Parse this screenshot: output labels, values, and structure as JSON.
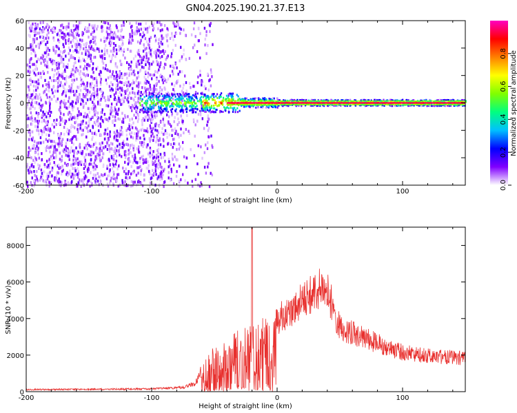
{
  "title": "GN04.2025.190.21.37.E13",
  "chart_data": [
    {
      "type": "heatmap",
      "xlabel": "Height of straight line (km)",
      "ylabel": "Frequency (Hz)",
      "xlim": [
        -200,
        150
      ],
      "ylim": [
        -60,
        60
      ],
      "xticks": [
        -200,
        -100,
        0,
        100
      ],
      "yticks": [
        -60,
        -40,
        -20,
        0,
        20,
        40,
        60
      ],
      "colorbar": {
        "label": "Normalized spectral amplitude",
        "range": [
          0,
          1
        ],
        "ticks": [
          0.0,
          0.2,
          0.4,
          0.6,
          0.8
        ],
        "colormap": [
          "#ffffff",
          "#8000ff",
          "#0000ff",
          "#00c0ff",
          "#00ff80",
          "#80ff00",
          "#ffff00",
          "#ff8000",
          "#ff0000",
          "#ff00c0"
        ]
      },
      "noise_region_km": [
        -200,
        -60
      ],
      "carrier_frequency_hz": 0,
      "carrier_region_km": [
        -110,
        150
      ]
    },
    {
      "type": "line",
      "xlabel": "Height of straight line (km)",
      "ylabel": "SNR (10 * v/v)",
      "xlim": [
        -200,
        150
      ],
      "ylim": [
        0,
        9000
      ],
      "xticks": [
        -200,
        -100,
        0,
        100
      ],
      "yticks": [
        0,
        2000,
        4000,
        6000,
        8000
      ],
      "line_color": "#e8302e",
      "envelope": {
        "x": [
          -200,
          -100,
          -75,
          -65,
          -60,
          -50,
          -40,
          -30,
          -20,
          -10,
          0,
          10,
          20,
          30,
          35,
          40,
          45,
          50,
          60,
          80,
          100,
          120,
          150
        ],
        "y": [
          150,
          200,
          300,
          600,
          1600,
          2600,
          3100,
          3500,
          3700,
          4200,
          4800,
          5300,
          6000,
          6600,
          6800,
          6600,
          5500,
          4300,
          3900,
          3200,
          2600,
          2400,
          2200
        ]
      },
      "spike": {
        "x": -20,
        "y": 9000
      }
    }
  ]
}
